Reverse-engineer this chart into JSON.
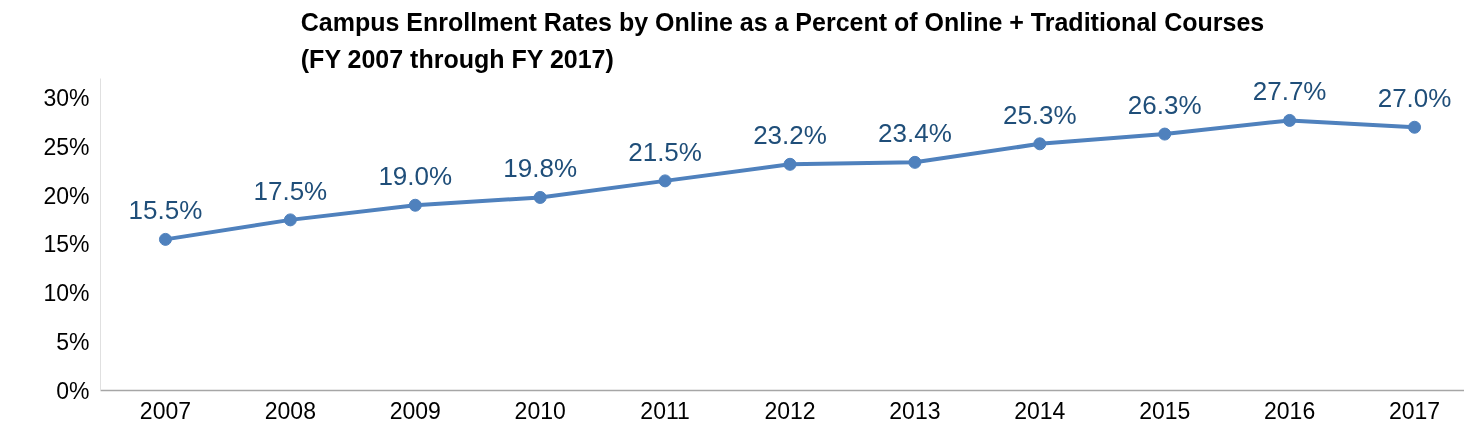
{
  "chart_data": {
    "type": "line",
    "title": "Campus Enrollment Rates by Online as a Percent of Online + Traditional Courses\n(FY 2007 through FY 2017)",
    "categories": [
      "2007",
      "2008",
      "2009",
      "2010",
      "2011",
      "2012",
      "2013",
      "2014",
      "2015",
      "2016",
      "2017"
    ],
    "series": [
      {
        "color": "#4f81bd",
        "values": [
          15.5,
          17.5,
          19.0,
          19.8,
          21.5,
          23.2,
          23.4,
          25.3,
          26.3,
          27.7,
          27.0
        ],
        "value_labels": [
          "15.5%",
          "17.5%",
          "19.0%",
          "19.8%",
          "21.5%",
          "23.2%",
          "23.4%",
          "25.3%",
          "26.3%",
          "27.7%",
          "27.0%"
        ]
      }
    ],
    "ylim": [
      0,
      32
    ],
    "yticks": [
      {
        "value": 0,
        "label": "0%"
      },
      {
        "value": 5,
        "label": "5%"
      },
      {
        "value": 10,
        "label": "10%"
      },
      {
        "value": 15,
        "label": "15%"
      },
      {
        "value": 20,
        "label": "20%"
      },
      {
        "value": 25,
        "label": "25%"
      },
      {
        "value": 30,
        "label": "30%"
      }
    ],
    "grid": false,
    "marker": "circle",
    "line_style": "solid"
  }
}
